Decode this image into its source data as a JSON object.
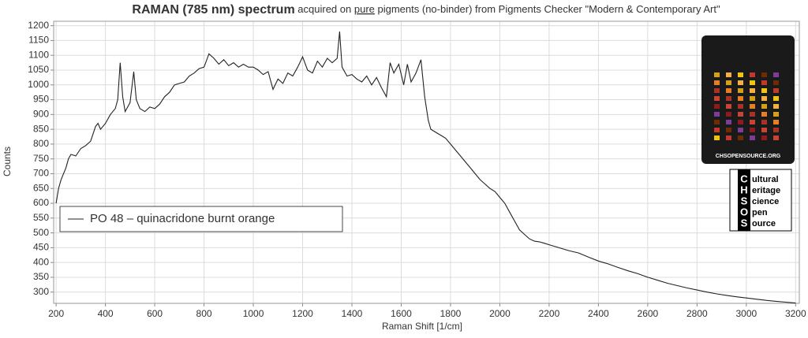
{
  "chart_data": {
    "type": "line",
    "title": [
      "RAMAN (785 nm) spectrum",
      " acquired on ",
      "pure",
      " pigments (no-binder) from Pigments Checker \"Modern & Contemporary Art\""
    ],
    "x_label": "Raman Shift [1/cm]",
    "y_label": "Counts",
    "x": [
      200,
      210,
      220,
      240,
      250,
      260,
      280,
      300,
      320,
      340,
      360,
      370,
      380,
      400,
      420,
      440,
      450,
      460,
      470,
      480,
      500,
      515,
      525,
      540,
      560,
      580,
      600,
      620,
      640,
      660,
      680,
      700,
      720,
      740,
      760,
      780,
      800,
      820,
      840,
      860,
      880,
      900,
      920,
      940,
      960,
      980,
      1000,
      1020,
      1040,
      1060,
      1080,
      1100,
      1120,
      1140,
      1160,
      1180,
      1200,
      1220,
      1240,
      1260,
      1280,
      1300,
      1320,
      1340,
      1350,
      1360,
      1380,
      1400,
      1420,
      1440,
      1460,
      1480,
      1500,
      1520,
      1540,
      1555,
      1570,
      1590,
      1610,
      1625,
      1640,
      1660,
      1680,
      1695,
      1710,
      1720,
      1740,
      1760,
      1780,
      1800,
      1820,
      1840,
      1860,
      1880,
      1900,
      1920,
      1940,
      1960,
      1980,
      2000,
      2020,
      2040,
      2060,
      2080,
      2100,
      2120,
      2140,
      2160,
      2180,
      2200,
      2240,
      2280,
      2320,
      2360,
      2400,
      2440,
      2480,
      2520,
      2560,
      2600,
      2640,
      2680,
      2720,
      2760,
      2800,
      2840,
      2880,
      2920,
      2960,
      3000,
      3040,
      3080,
      3120,
      3160,
      3200
    ],
    "series": [
      {
        "name": "PO 48 – quinacridone burnt orange",
        "color": "#222222",
        "values": [
          600,
          650,
          680,
          720,
          750,
          765,
          760,
          785,
          795,
          810,
          860,
          870,
          850,
          870,
          900,
          920,
          950,
          1075,
          960,
          910,
          940,
          1045,
          950,
          920,
          910,
          925,
          920,
          935,
          960,
          975,
          1000,
          1005,
          1010,
          1030,
          1040,
          1055,
          1060,
          1105,
          1090,
          1070,
          1085,
          1065,
          1075,
          1060,
          1070,
          1060,
          1060,
          1050,
          1035,
          1045,
          985,
          1020,
          1005,
          1040,
          1030,
          1060,
          1095,
          1050,
          1040,
          1080,
          1060,
          1090,
          1075,
          1090,
          1180,
          1060,
          1030,
          1035,
          1020,
          1010,
          1030,
          1000,
          1025,
          990,
          960,
          1075,
          1040,
          1070,
          1000,
          1070,
          1010,
          1040,
          1085,
          960,
          880,
          850,
          840,
          830,
          820,
          800,
          780,
          760,
          740,
          720,
          700,
          680,
          665,
          650,
          640,
          620,
          600,
          570,
          540,
          510,
          495,
          480,
          472,
          470,
          465,
          460,
          450,
          440,
          432,
          418,
          405,
          395,
          383,
          372,
          362,
          350,
          340,
          330,
          322,
          314,
          307,
          300,
          294,
          289,
          284,
          280,
          276,
          272,
          269,
          266,
          263
        ]
      }
    ],
    "xlim": [
      190,
      3215
    ],
    "ylim": [
      262,
      1215
    ],
    "xticks": [
      200,
      400,
      600,
      800,
      1000,
      1200,
      1400,
      1600,
      1800,
      2000,
      2200,
      2400,
      2600,
      2800,
      3000,
      3200
    ],
    "yticks": [
      300,
      350,
      400,
      450,
      500,
      550,
      600,
      650,
      700,
      750,
      800,
      850,
      900,
      950,
      1000,
      1050,
      1100,
      1150,
      1200
    ],
    "grid": true,
    "legend": "left"
  },
  "logo": {
    "card_label": "CHSOPENSOURCE.ORG",
    "letters": [
      "C",
      "H",
      "S",
      "O",
      "S"
    ],
    "words": [
      "ultural",
      "eritage",
      "cience",
      "pen",
      "ource"
    ]
  }
}
